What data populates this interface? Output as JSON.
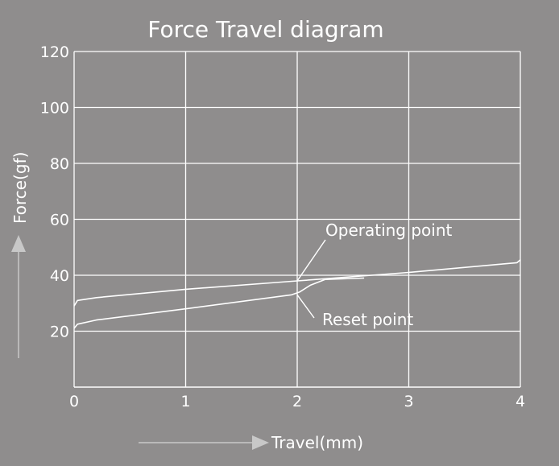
{
  "chart_data": {
    "type": "line",
    "title": "Force Travel diagram",
    "xlabel": "Travel(mm)",
    "ylabel": "Force(gf)",
    "xlim": [
      0,
      4
    ],
    "ylim": [
      0,
      120
    ],
    "xticks": [
      0,
      1,
      2,
      3,
      4
    ],
    "yticks": [
      20,
      40,
      60,
      80,
      100,
      120
    ],
    "grid": true,
    "colors": {
      "background": "#8f8d8d",
      "line": "#ffffff",
      "arrow": "#c8c8c8"
    },
    "series": [
      {
        "points": [
          [
            0,
            29
          ],
          [
            0.03,
            31
          ],
          [
            0.2,
            32
          ],
          [
            1,
            35
          ],
          [
            2,
            38
          ],
          [
            3,
            41
          ],
          [
            3.97,
            44.5
          ],
          [
            4,
            45.5
          ]
        ]
      },
      {
        "points": [
          [
            0,
            21
          ],
          [
            0.03,
            22.5
          ],
          [
            0.2,
            24
          ],
          [
            1,
            28
          ],
          [
            1.95,
            33
          ],
          [
            2.02,
            34
          ],
          [
            2.12,
            36.5
          ],
          [
            2.25,
            38.5
          ],
          [
            2.6,
            39
          ]
        ]
      }
    ],
    "annotations": [
      {
        "text": "Operating point",
        "x": 2,
        "y": 38
      },
      {
        "text": "Reset point",
        "x": 2,
        "y": 33
      }
    ]
  }
}
